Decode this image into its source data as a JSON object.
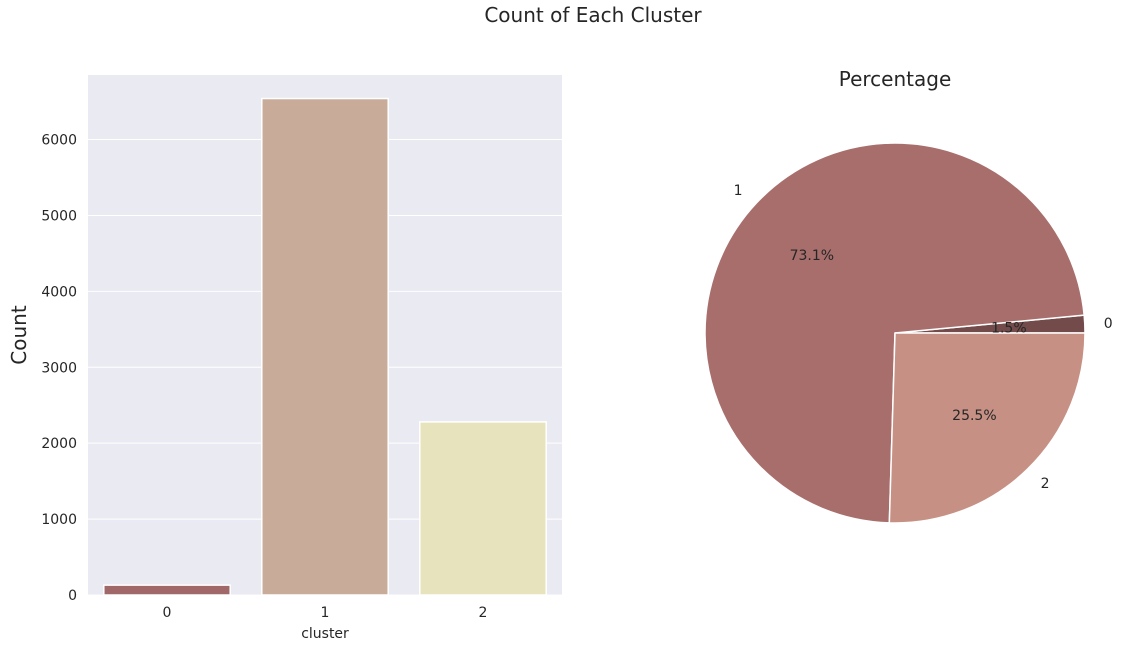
{
  "figure": {
    "title": "Count of Each Cluster"
  },
  "chart_data": [
    {
      "type": "bar",
      "title": "",
      "xlabel": "cluster",
      "ylabel": "Count",
      "categories": [
        "0",
        "1",
        "2"
      ],
      "values": [
        130,
        6540,
        2280
      ],
      "ylim": [
        0,
        6850
      ],
      "yticks": [
        0,
        1000,
        2000,
        3000,
        4000,
        5000,
        6000
      ],
      "grid": true,
      "colors": [
        "#a06868",
        "#c8ab98",
        "#e6e3bd"
      ],
      "background": "#eaeaf2"
    },
    {
      "type": "pie",
      "title": "Percentage",
      "labels": [
        "0",
        "1",
        "2"
      ],
      "values": [
        1.5,
        73.1,
        25.5
      ],
      "pct_labels": [
        "1.5%",
        "73.1%",
        "25.5%"
      ],
      "colors": [
        "#734b4b",
        "#a86e6c",
        "#c69184"
      ]
    }
  ]
}
